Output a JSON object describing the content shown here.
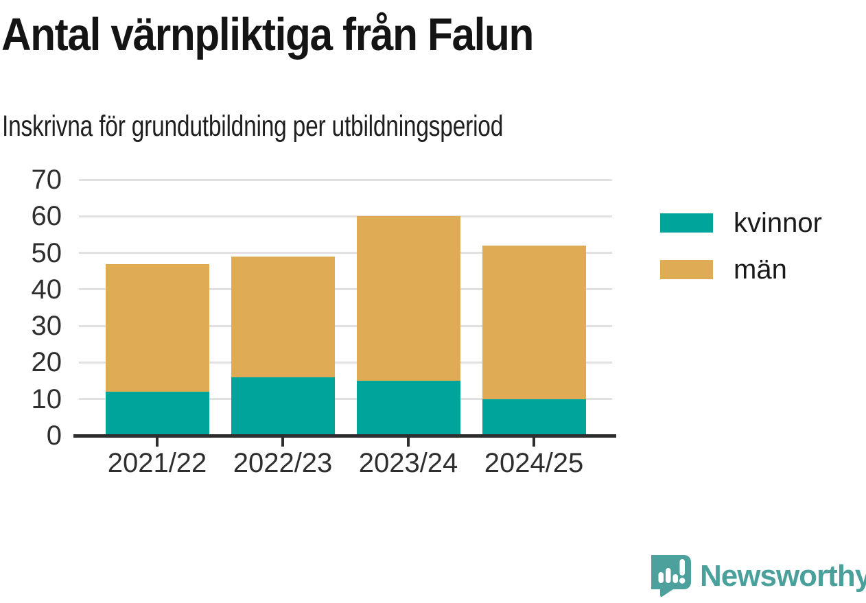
{
  "chart_data": {
    "type": "bar",
    "stacked": true,
    "title": "Antal värnpliktiga från Falun",
    "subtitle": "Inskrivna för grundutbildning per utbildningsperiod",
    "categories": [
      "2021/22",
      "2022/23",
      "2023/24",
      "2024/25"
    ],
    "series": [
      {
        "name": "kvinnor",
        "color": "#00A49B",
        "values": [
          12,
          16,
          15,
          10
        ]
      },
      {
        "name": "män",
        "color": "#DFAC55",
        "values": [
          35,
          33,
          45,
          42
        ]
      }
    ],
    "totals": [
      47,
      49,
      60,
      52
    ],
    "xlabel": "",
    "ylabel": "",
    "ylim": [
      0,
      70
    ],
    "yticks": [
      0,
      10,
      20,
      30,
      40,
      50,
      60,
      70
    ],
    "grid": true,
    "legend_position": "right"
  },
  "colors": {
    "kvinnor": "#00A49B",
    "man": "#DFAC55",
    "axis": "#2E2E2E",
    "gridline": "#E1E1E1",
    "title_text": "#141414",
    "brand_teal": "#4AA19C"
  },
  "branding": {
    "logo_text": "Newsworthy",
    "logo_icon": "bar-chart-speech-bubble-icon"
  }
}
